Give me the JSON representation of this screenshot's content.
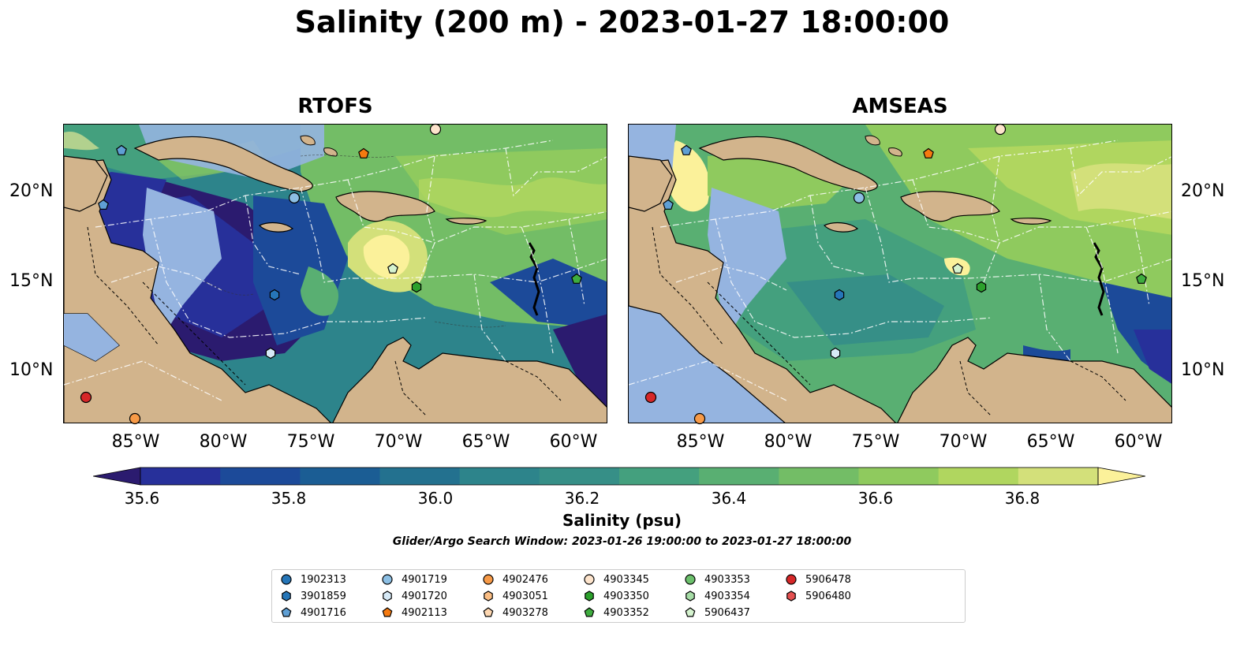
{
  "title": "Salinity (200 m) - 2023-01-27 18:00:00",
  "panels": [
    {
      "title": "RTOFS"
    },
    {
      "title": "AMSEAS"
    }
  ],
  "lon_ticks": [
    "85°W",
    "80°W",
    "75°W",
    "70°W",
    "65°W",
    "60°W"
  ],
  "lat_ticks": [
    "20°N",
    "15°N",
    "10°N"
  ],
  "colorbar": {
    "label": "Salinity (psu)",
    "ticks": [
      "35.6",
      "35.8",
      "36.0",
      "36.2",
      "36.4",
      "36.6",
      "36.8"
    ],
    "range": [
      35.5,
      36.9
    ],
    "colors": [
      "#2b1b6f",
      "#27309a",
      "#1c4a99",
      "#1b5d94",
      "#23718f",
      "#2d848b",
      "#368f87",
      "#44a07e",
      "#59af72",
      "#73bd66",
      "#8fca5e",
      "#b0d65f",
      "#d3e07a",
      "#fbf19a"
    ]
  },
  "search_window": "Glider/Argo Search Window: 2023-01-26 19:00:00 to 2023-01-27 18:00:00",
  "land_color": "#d2b48c",
  "shelf_color": "#95b4e0",
  "floats": [
    {
      "id": "1902313",
      "marker": "circle",
      "color": "#2676b8"
    },
    {
      "id": "3901859",
      "marker": "hexagon",
      "color": "#2676b8"
    },
    {
      "id": "4901716",
      "marker": "pentagon",
      "color": "#5f9fd4"
    },
    {
      "id": "4901719",
      "marker": "circle",
      "color": "#8cbfe4"
    },
    {
      "id": "4901720",
      "marker": "hexagon",
      "color": "#d6e9f6"
    },
    {
      "id": "4902113",
      "marker": "pentagon",
      "color": "#f57a10"
    },
    {
      "id": "4902476",
      "marker": "circle",
      "color": "#f79a47"
    },
    {
      "id": "4903051",
      "marker": "hexagon",
      "color": "#fbbe84"
    },
    {
      "id": "4903278",
      "marker": "pentagon",
      "color": "#fdd7b1"
    },
    {
      "id": "4903345",
      "marker": "circle",
      "color": "#fde4cc"
    },
    {
      "id": "4903350",
      "marker": "hexagon",
      "color": "#2ca02c"
    },
    {
      "id": "4903352",
      "marker": "pentagon",
      "color": "#3fad3f"
    },
    {
      "id": "4903353",
      "marker": "circle",
      "color": "#6cc06c"
    },
    {
      "id": "4903354",
      "marker": "hexagon",
      "color": "#a6dca6"
    },
    {
      "id": "5906437",
      "marker": "pentagon",
      "color": "#d5f3cf"
    },
    {
      "id": "5906478",
      "marker": "circle",
      "color": "#d62728"
    },
    {
      "id": "5906480",
      "marker": "hexagon",
      "color": "#e45050"
    }
  ]
}
